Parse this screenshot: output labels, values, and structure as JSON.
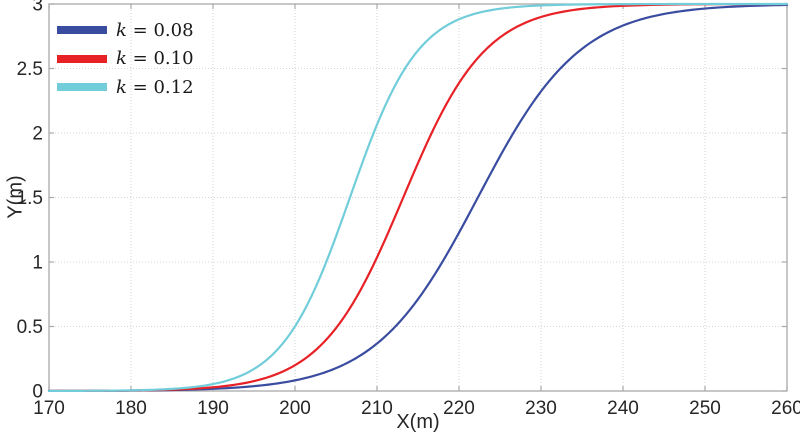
{
  "figure": {
    "background": "#ffffff",
    "axis_color": "#a9a9a9",
    "grid_color": "#d6d6d6",
    "tick_label_color": "#262626"
  },
  "chart_data": {
    "type": "line",
    "title": "",
    "xlabel": "X(m)",
    "ylabel": "Y(m)",
    "xlim": [
      170,
      260
    ],
    "ylim": [
      0,
      3
    ],
    "xticks": [
      "170",
      "180",
      "190",
      "200",
      "210",
      "220",
      "230",
      "240",
      "250",
      "260"
    ],
    "yticks": [
      "0",
      "0.5",
      "1",
      "1.5",
      "2",
      "2.5",
      "3"
    ],
    "grid": "dotted",
    "legend": {
      "position": "top-left",
      "frame": false
    },
    "x_samples": [
      170,
      175,
      180,
      185,
      190,
      195,
      200,
      205,
      210,
      215,
      220,
      225,
      230,
      235,
      240,
      245,
      250,
      255,
      260
    ],
    "series": [
      {
        "name": "k = 0.08",
        "label_prefix": "k",
        "label_suffix": " = 0.08",
        "color": "#3A4CA0",
        "line_width": 2.2,
        "model": {
          "type": "tanh_sigmoid",
          "formula": "y = 1.5*(1+tanh(k*(x-x0)))",
          "k": 0.08,
          "x0": 222.3,
          "y_max": 3
        },
        "y_samples": [
          0.0,
          0.0,
          0.0,
          0.01,
          0.02,
          0.04,
          0.08,
          0.18,
          0.37,
          0.71,
          1.23,
          1.82,
          2.32,
          2.65,
          2.83,
          2.92,
          2.97,
          2.98,
          2.99
        ]
      },
      {
        "name": "k = 0.10",
        "label_prefix": "k",
        "label_suffix": " = 0.10",
        "color": "#E82127",
        "line_width": 2.2,
        "model": {
          "type": "tanh_sigmoid",
          "formula": "y = 1.5*(1+tanh(k*(x-x0)))",
          "k": 0.1,
          "x0": 213.2,
          "y_max": 3
        },
        "y_samples": [
          0.0,
          0.0,
          0.0,
          0.01,
          0.03,
          0.08,
          0.2,
          0.49,
          1.04,
          1.77,
          2.39,
          2.74,
          2.9,
          2.96,
          2.99,
          2.99,
          3.0,
          3.0,
          3.0
        ]
      },
      {
        "name": "k = 0.12",
        "label_prefix": "k",
        "label_suffix": " = 0.12",
        "color": "#71CDDA",
        "line_width": 2.2,
        "model": {
          "type": "tanh_sigmoid",
          "formula": "y = 1.5*(1+tanh(k*(x-x0)))",
          "k": 0.12,
          "x0": 206.7,
          "y_max": 3
        },
        "y_samples": [
          0.0,
          0.0,
          0.01,
          0.02,
          0.05,
          0.17,
          0.5,
          1.2,
          2.06,
          2.64,
          2.88,
          2.96,
          2.99,
          3.0,
          3.0,
          3.0,
          3.0,
          3.0,
          3.0
        ]
      }
    ]
  }
}
